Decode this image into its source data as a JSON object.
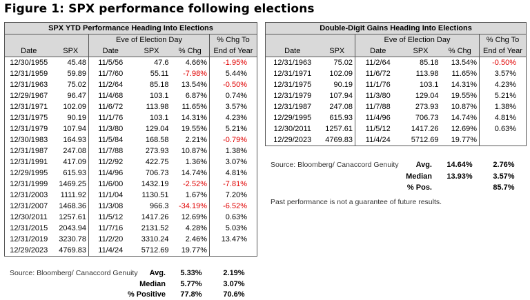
{
  "figure_title": "Figure 1: SPX performance following elections",
  "table1": {
    "title": "SPX YTD Performance Heading Into Elections",
    "group_eve": "Eve of Election Day",
    "group_chg": "% Chg To",
    "col_headers": [
      "Date",
      "SPX",
      "Date",
      "SPX",
      "% Chg",
      "End of Year"
    ],
    "rows": [
      [
        "12/30/1955",
        "45.48",
        "11/5/56",
        "47.6",
        "4.66%",
        "-1.95%"
      ],
      [
        "12/31/1959",
        "59.89",
        "11/7/60",
        "55.11",
        "-7.98%",
        "5.44%"
      ],
      [
        "12/31/1963",
        "75.02",
        "11/2/64",
        "85.18",
        "13.54%",
        "-0.50%"
      ],
      [
        "12/29/1967",
        "96.47",
        "11/4/68",
        "103.1",
        "6.87%",
        "0.74%"
      ],
      [
        "12/31/1971",
        "102.09",
        "11/6/72",
        "113.98",
        "11.65%",
        "3.57%"
      ],
      [
        "12/31/1975",
        "90.19",
        "11/1/76",
        "103.1",
        "14.31%",
        "4.23%"
      ],
      [
        "12/31/1979",
        "107.94",
        "11/3/80",
        "129.04",
        "19.55%",
        "5.21%"
      ],
      [
        "12/30/1983",
        "164.93",
        "11/5/84",
        "168.58",
        "2.21%",
        "-0.79%"
      ],
      [
        "12/31/1987",
        "247.08",
        "11/7/88",
        "273.93",
        "10.87%",
        "1.38%"
      ],
      [
        "12/31/1991",
        "417.09",
        "11/2/92",
        "422.75",
        "1.36%",
        "3.07%"
      ],
      [
        "12/29/1995",
        "615.93",
        "11/4/96",
        "706.73",
        "14.74%",
        "4.81%"
      ],
      [
        "12/31/1999",
        "1469.25",
        "11/6/00",
        "1432.19",
        "-2.52%",
        "-7.81%"
      ],
      [
        "12/31/2003",
        "1111.92",
        "11/1/04",
        "1130.51",
        "1.67%",
        "7.20%"
      ],
      [
        "12/31/2007",
        "1468.36",
        "11/3/08",
        "966.3",
        "-34.19%",
        "-6.52%"
      ],
      [
        "12/30/2011",
        "1257.61",
        "11/5/12",
        "1417.26",
        "12.69%",
        "0.63%"
      ],
      [
        "12/31/2015",
        "2043.94",
        "11/7/16",
        "2131.52",
        "4.28%",
        "5.03%"
      ],
      [
        "12/31/2019",
        "3230.78",
        "11/2/20",
        "3310.24",
        "2.46%",
        "13.47%"
      ],
      [
        "12/29/2023",
        "4769.83",
        "11/4/24",
        "5712.69",
        "19.77%",
        ""
      ]
    ],
    "source": "Source: Bloomberg/ Canaccord Genuity",
    "stats": [
      {
        "label": "Avg.",
        "chg": "5.33%",
        "eoy": "2.19%"
      },
      {
        "label": "Median",
        "chg": "5.77%",
        "eoy": "3.07%"
      },
      {
        "label": "% Positive",
        "chg": "77.8%",
        "eoy": "70.6%"
      }
    ]
  },
  "table2": {
    "title": "Double-Digit Gains Heading Into Elections",
    "group_eve": "Eve of Election Day",
    "group_chg": "% Chg To",
    "col_headers": [
      "Date",
      "SPX",
      "Date",
      "SPX",
      "% Chg",
      "End of Year"
    ],
    "rows": [
      [
        "12/31/1963",
        "75.02",
        "11/2/64",
        "85.18",
        "13.54%",
        "-0.50%"
      ],
      [
        "12/31/1971",
        "102.09",
        "11/6/72",
        "113.98",
        "11.65%",
        "3.57%"
      ],
      [
        "12/31/1975",
        "90.19",
        "11/1/76",
        "103.1",
        "14.31%",
        "4.23%"
      ],
      [
        "12/31/1979",
        "107.94",
        "11/3/80",
        "129.04",
        "19.55%",
        "5.21%"
      ],
      [
        "12/31/1987",
        "247.08",
        "11/7/88",
        "273.93",
        "10.87%",
        "1.38%"
      ],
      [
        "12/29/1995",
        "615.93",
        "11/4/96",
        "706.73",
        "14.74%",
        "4.81%"
      ],
      [
        "12/30/2011",
        "1257.61",
        "11/5/12",
        "1417.26",
        "12.69%",
        "0.63%"
      ],
      [
        "12/29/2023",
        "4769.83",
        "11/4/24",
        "5712.69",
        "19.77%",
        ""
      ]
    ],
    "source": "Source: Bloomberg/ Canaccord Genuity",
    "stats": [
      {
        "label": "Avg.",
        "chg": "14.64%",
        "eoy": "2.76%"
      },
      {
        "label": "Median",
        "chg": "13.93%",
        "eoy": "3.57%"
      },
      {
        "label": "% Pos.",
        "chg": "",
        "eoy": "85.7%"
      }
    ],
    "note": "Past performance is not a guarantee of future results."
  },
  "colors": {
    "negative": "#e00000",
    "header_shade": "#d9d9d9",
    "border": "#555555"
  }
}
